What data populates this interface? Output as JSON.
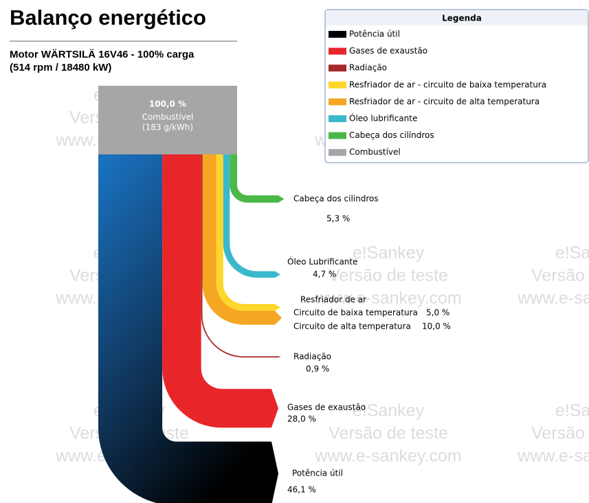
{
  "chart_data": {
    "type": "sankey",
    "title": "Balanço energético",
    "subtitle": [
      "Motor WÄRTSILÄ 16V46 - 100% carga",
      "(514 rpm / 18480 kW)"
    ],
    "source": {
      "name": "Combustível",
      "value": 100,
      "value_label": "100,0 %",
      "note": "(183 g/kWh)",
      "color": "#a6a6a6"
    },
    "legend_title": "Legenda",
    "cooler_label": "Resfriador de ar",
    "series": [
      {
        "name": "Potência útil",
        "color": "#000000",
        "label": "Potência útil",
        "value": 46.1,
        "value_label": "46,1 %"
      },
      {
        "name": "Gases de exaustão",
        "color": "#e8262a",
        "label": "Gases de exaustão",
        "value": 28.0,
        "value_label": "28,0 %"
      },
      {
        "name": "Radiação",
        "color": "#a5282a",
        "label": "Radiação",
        "value": 0.9,
        "value_label": "0,9 %"
      },
      {
        "name": "Resfriador de ar - circuito de baixa temperatura",
        "color": "#ffd62b",
        "label": "Circuito de baixa temperatura",
        "value": 5.0,
        "value_label": "5,0 %"
      },
      {
        "name": "Resfriador de ar - circuito de alta temperatura",
        "color": "#f5a623",
        "label": "Circuito de alta temperatura",
        "value": 10.0,
        "value_label": "10,0 %"
      },
      {
        "name": "Óleo lubrificante",
        "color": "#3ab8cc",
        "label": "Óleo Lubrificante",
        "value": 4.7,
        "value_label": "4,7 %"
      },
      {
        "name": "Cabeça dos cilíndros",
        "color": "#4cb848",
        "label": "Cabeça dos cilindros",
        "value": 5.3,
        "value_label": "5,3 %"
      }
    ],
    "watermark": [
      "e!Sankey",
      "Versão de teste",
      "www.e-sankey.com"
    ]
  }
}
